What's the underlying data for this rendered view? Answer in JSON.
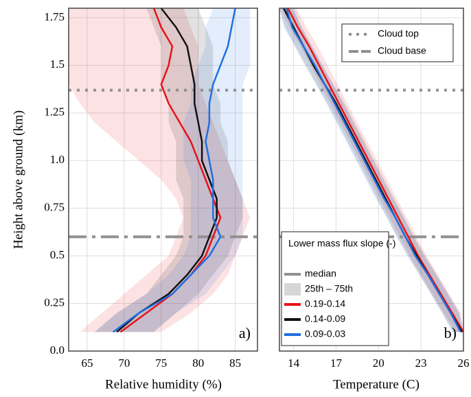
{
  "chart_data": [
    {
      "type": "profile",
      "x_label": "Relative humidity (%)",
      "y_label": "Height above ground (km)",
      "panel_label": "a)",
      "xlim": [
        62.5,
        88
      ],
      "xticks": [
        65,
        70,
        75,
        80,
        85
      ],
      "ylim": [
        0,
        1.8
      ],
      "yticks": [
        {
          "value": 0,
          "label": "0.0"
        },
        0.25,
        0.5,
        0.75,
        {
          "value": 1,
          "label": "1.0"
        },
        1.25,
        1.5,
        1.75
      ],
      "grid": true,
      "heights": [
        0.1,
        0.2,
        0.3,
        0.4,
        0.5,
        0.6,
        0.7,
        0.8,
        0.9,
        1.0,
        1.1,
        1.2,
        1.3,
        1.4,
        1.5,
        1.6,
        1.7,
        1.8
      ],
      "series": [
        {
          "color": "#e8121a",
          "values": [
            69.5,
            73,
            76.5,
            79,
            81,
            82,
            83,
            82,
            81,
            80,
            79,
            77.5,
            76,
            75,
            76,
            76.5,
            75,
            74
          ],
          "low": [
            64,
            67,
            70,
            73,
            76,
            77,
            78,
            77,
            75,
            72,
            69,
            66,
            64,
            62.5,
            62.5,
            62.5,
            62.5,
            62.5
          ],
          "high": [
            75,
            79,
            82,
            84,
            85,
            86,
            87,
            86,
            85,
            84,
            83,
            82,
            81,
            80,
            80,
            80,
            79,
            78
          ]
        },
        {
          "color": "#111111",
          "values": [
            69,
            72,
            76,
            78.5,
            80.5,
            81.5,
            82.5,
            82.5,
            81.5,
            80.5,
            80.5,
            80,
            79.5,
            79.5,
            79,
            78.5,
            77,
            75
          ],
          "low": [
            66,
            69,
            73,
            75,
            77,
            78,
            78,
            78,
            77,
            77,
            77,
            76,
            76,
            75,
            75,
            75,
            74,
            73
          ],
          "high": [
            74,
            77,
            80,
            82,
            84,
            85,
            86,
            86,
            85,
            84,
            84,
            83,
            83,
            82,
            82,
            82,
            81,
            80
          ]
        },
        {
          "color": "#1f6fe0",
          "values": [
            68.5,
            72,
            76.5,
            79,
            81.5,
            83,
            82,
            82,
            82,
            81.5,
            81,
            81.5,
            81.5,
            82,
            83,
            84,
            84.5,
            85
          ],
          "low": [
            66,
            69,
            73,
            76,
            78,
            79,
            79,
            79,
            79,
            78,
            78,
            78,
            79,
            79,
            80,
            81,
            81,
            82
          ],
          "high": [
            74,
            77,
            81,
            83,
            85,
            86,
            86,
            86,
            86,
            86,
            86,
            86,
            86,
            86,
            87,
            87,
            87,
            87
          ]
        }
      ]
    },
    {
      "type": "profile",
      "x_label": "Temperature (C)",
      "panel_label": "b)",
      "xlim": [
        13,
        26
      ],
      "xticks": [
        14,
        17,
        20,
        23,
        26
      ],
      "ylim": [
        0,
        1.8
      ],
      "grid": true,
      "reference_lines": [
        {
          "label": "Cloud top",
          "value": 1.37,
          "style": "dotted"
        },
        {
          "label": "Cloud base",
          "value": 0.6,
          "style": "dashdot"
        }
      ],
      "legend_title": "Lower mass flux slope (-)",
      "median_label": "median",
      "band_label": "25th – 75th",
      "heights": [
        0.1,
        0.2,
        0.3,
        0.4,
        0.5,
        0.6,
        0.7,
        0.8,
        0.9,
        1.0,
        1.1,
        1.2,
        1.3,
        1.4,
        1.5,
        1.6,
        1.7,
        1.8
      ],
      "series": [
        {
          "name": "0.19-0.14",
          "color": "#e8121a",
          "values": [
            26,
            25.2,
            24.4,
            23.6,
            22.8,
            22.1,
            21.4,
            20.7,
            20,
            19.3,
            18.6,
            17.9,
            17.2,
            16.5,
            15.8,
            15.1,
            14.3,
            13.6
          ],
          "low": [
            25.5,
            24.6,
            23.8,
            23,
            22.2,
            21.5,
            20.8,
            20.1,
            19.4,
            18.7,
            18,
            17.3,
            16.6,
            15.9,
            15.2,
            14.5,
            13.7,
            13.1
          ],
          "high": [
            26,
            25.8,
            25,
            24.2,
            23.4,
            22.7,
            22,
            21.3,
            20.6,
            19.9,
            19.2,
            18.5,
            17.8,
            17.1,
            16.4,
            15.7,
            14.9,
            14.2
          ]
        },
        {
          "name": "0.14-0.09",
          "color": "#111111",
          "values": [
            25.9,
            25.1,
            24.3,
            23.5,
            22.7,
            21.9,
            21.2,
            20.5,
            19.8,
            19.1,
            18.4,
            17.7,
            17,
            16.2,
            15.4,
            14.7,
            14,
            13.3
          ],
          "low": [
            25.3,
            24.5,
            23.7,
            22.9,
            22.1,
            21.3,
            20.6,
            19.9,
            19.2,
            18.5,
            17.8,
            17.1,
            16.4,
            15.6,
            14.8,
            14.1,
            13.4,
            13
          ],
          "high": [
            26,
            25.7,
            24.9,
            24.1,
            23.3,
            22.5,
            21.8,
            21.1,
            20.4,
            19.7,
            19,
            18.3,
            17.6,
            16.8,
            16,
            15.3,
            14.6,
            13.9
          ]
        },
        {
          "name": "0.09-0.03",
          "color": "#1f6fe0",
          "values": [
            25.8,
            25.1,
            24.3,
            23.5,
            22.6,
            21.9,
            21.2,
            20.4,
            19.7,
            19,
            18.3,
            17.6,
            16.9,
            16.2,
            15.5,
            14.7,
            13.9,
            13.5
          ],
          "low": [
            25.2,
            24.5,
            23.7,
            22.9,
            22,
            21.3,
            20.6,
            19.8,
            19.1,
            18.4,
            17.7,
            17,
            16.3,
            15.6,
            14.9,
            14.1,
            13.3,
            13
          ],
          "high": [
            26,
            25.7,
            24.9,
            24.1,
            23.2,
            22.5,
            21.8,
            21,
            20.3,
            19.6,
            18.9,
            18.2,
            17.5,
            16.8,
            16.1,
            15.3,
            14.5,
            14.1
          ]
        }
      ]
    }
  ]
}
